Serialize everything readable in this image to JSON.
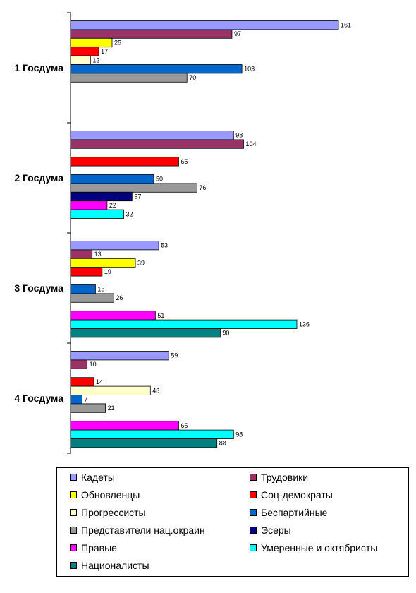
{
  "chart_data": {
    "type": "bar",
    "orientation": "horizontal",
    "categories": [
      "1 Госдума",
      "2 Госдума",
      "3 Госдума",
      "4 Госдума"
    ],
    "series": [
      {
        "name": "Кадеты",
        "color": "#9999ff",
        "values": [
          161,
          98,
          53,
          59
        ]
      },
      {
        "name": "Трудовики",
        "color": "#993366",
        "values": [
          97,
          104,
          13,
          10
        ]
      },
      {
        "name": "Обновленцы",
        "color": "#ffff00",
        "values": [
          25,
          null,
          39,
          null
        ]
      },
      {
        "name": "Соц-демократы",
        "color": "#ff0000",
        "values": [
          17,
          65,
          19,
          14
        ]
      },
      {
        "name": "Прогрессисты",
        "color": "#ffffcc",
        "values": [
          12,
          null,
          null,
          48
        ]
      },
      {
        "name": "Беспартийные",
        "color": "#0066cc",
        "values": [
          103,
          50,
          15,
          7
        ]
      },
      {
        "name": "Представители нац.окраин",
        "color": "#999999",
        "values": [
          70,
          76,
          26,
          21
        ]
      },
      {
        "name": "Эсеры",
        "color": "#000080",
        "values": [
          null,
          37,
          null,
          null
        ]
      },
      {
        "name": "Правые",
        "color": "#ff00ff",
        "values": [
          null,
          22,
          51,
          65
        ]
      },
      {
        "name": "Умеренные и октябристы",
        "color": "#00ffff",
        "values": [
          null,
          32,
          136,
          98
        ]
      },
      {
        "name": "Националисты",
        "color": "#008080",
        "values": [
          null,
          null,
          90,
          88
        ]
      }
    ],
    "xlim": [
      0,
      170
    ],
    "grid": false,
    "legend_position": "bottom"
  }
}
